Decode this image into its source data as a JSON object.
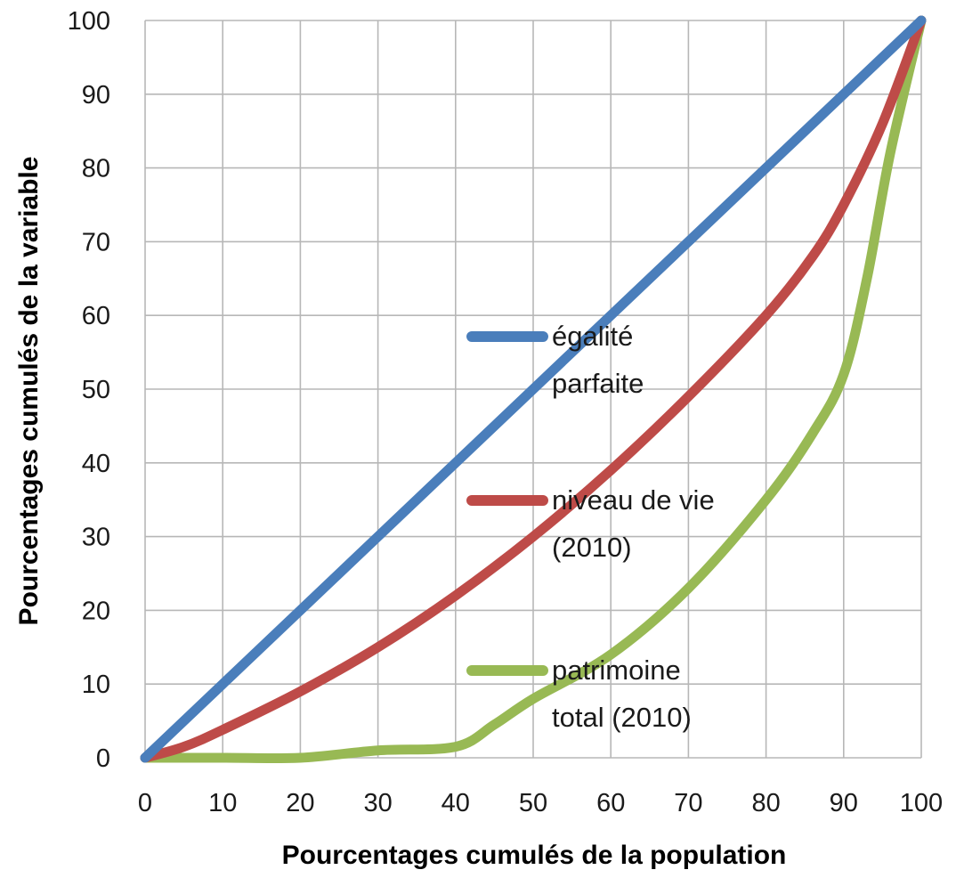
{
  "chart_data": {
    "type": "line",
    "xlabel": "Pourcentages cumulés de la population",
    "ylabel": "Pourcentages cumulés de la variable",
    "xlim": [
      0,
      100
    ],
    "ylim": [
      0,
      100
    ],
    "xticks": [
      "0",
      "10",
      "20",
      "30",
      "40",
      "50",
      "60",
      "70",
      "80",
      "90",
      "100"
    ],
    "yticks": [
      "0",
      "10",
      "20",
      "30",
      "40",
      "50",
      "60",
      "70",
      "80",
      "90",
      "100"
    ],
    "grid": true,
    "legend_position": "inside-center",
    "series": [
      {
        "name": "égalité parfaite",
        "legend_lines": [
          "égalité",
          "parfaite"
        ],
        "color": "#4a7ebb",
        "points": [
          [
            0,
            0
          ],
          [
            100,
            100
          ]
        ]
      },
      {
        "name": "niveau de vie (2010)",
        "legend_lines": [
          "niveau de vie",
          "(2010)"
        ],
        "color": "#be4b48",
        "points": [
          [
            0,
            0
          ],
          [
            5,
            1.5
          ],
          [
            10,
            3.8
          ],
          [
            20,
            9
          ],
          [
            30,
            15
          ],
          [
            40,
            22
          ],
          [
            50,
            30
          ],
          [
            60,
            39
          ],
          [
            70,
            49
          ],
          [
            80,
            60
          ],
          [
            86,
            68
          ],
          [
            90,
            75
          ],
          [
            95,
            86
          ],
          [
            100,
            100
          ]
        ]
      },
      {
        "name": "patrimoine total (2010)",
        "legend_lines": [
          "patrimoine",
          "total (2010)"
        ],
        "color": "#98b954",
        "points": [
          [
            0,
            0
          ],
          [
            10,
            0
          ],
          [
            20,
            0
          ],
          [
            30,
            1
          ],
          [
            40,
            1.5
          ],
          [
            45,
            4.5
          ],
          [
            50,
            8
          ],
          [
            60,
            14
          ],
          [
            70,
            23
          ],
          [
            80,
            35
          ],
          [
            86,
            44
          ],
          [
            90,
            52
          ],
          [
            93,
            65
          ],
          [
            96,
            82
          ],
          [
            100,
            100
          ]
        ]
      }
    ]
  }
}
